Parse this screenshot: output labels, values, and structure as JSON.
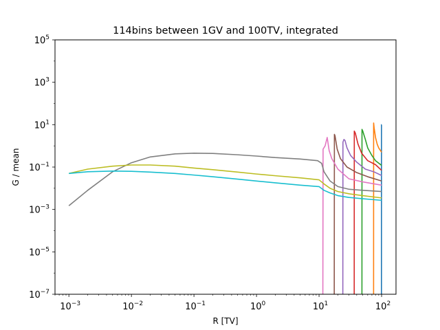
{
  "chart_data": {
    "type": "line",
    "title": "114bins between 1GV and 100TV, integrated",
    "xlabel": "R [TV]",
    "ylabel": "G / mean",
    "xscale": "log",
    "yscale": "log",
    "xlim": [
      0.0006,
      170
    ],
    "ylim": [
      1e-07,
      100000.0
    ],
    "grid": false,
    "x_ticks": [
      {
        "value": 0.001,
        "base": "10",
        "exp": "−3"
      },
      {
        "value": 0.01,
        "base": "10",
        "exp": "−2"
      },
      {
        "value": 0.1,
        "base": "10",
        "exp": "−1"
      },
      {
        "value": 1,
        "base": "10",
        "exp": "0"
      },
      {
        "value": 10,
        "base": "10",
        "exp": "1"
      },
      {
        "value": 100,
        "base": "10",
        "exp": "2"
      }
    ],
    "y_ticks": [
      {
        "value": 1e-07,
        "base": "10",
        "exp": "−7"
      },
      {
        "value": 1e-05,
        "base": "10",
        "exp": "−5"
      },
      {
        "value": 0.001,
        "base": "10",
        "exp": "−3"
      },
      {
        "value": 0.1,
        "base": "10",
        "exp": "−1"
      },
      {
        "value": 10,
        "base": "10",
        "exp": "1"
      },
      {
        "value": 1000,
        "base": "10",
        "exp": "3"
      },
      {
        "value": 100000,
        "base": "10",
        "exp": "5"
      }
    ],
    "series": [
      {
        "color": "#1f77b4",
        "x": [
          99.5,
          99.6,
          100
        ],
        "y": [
          1e-07,
          10,
          10
        ]
      },
      {
        "color": "#ff7f0e",
        "x": [
          74.5,
          74.6,
          76,
          80,
          85,
          90,
          100
        ],
        "y": [
          1e-07,
          12,
          7,
          2.5,
          1.2,
          0.8,
          0.5
        ]
      },
      {
        "color": "#2ca02c",
        "x": [
          48.5,
          48.6,
          50,
          55,
          60,
          70,
          80,
          100
        ],
        "y": [
          1e-07,
          6,
          5,
          2,
          0.8,
          0.35,
          0.2,
          0.12
        ]
      },
      {
        "color": "#d62728",
        "x": [
          36.5,
          36.6,
          38,
          42,
          48,
          60,
          80,
          100
        ],
        "y": [
          1e-07,
          5,
          4,
          1.2,
          0.45,
          0.2,
          0.13,
          0.07
        ]
      },
      {
        "color": "#9467bd",
        "x": [
          24,
          24.1,
          25,
          26,
          28,
          32,
          40,
          55,
          75,
          100
        ],
        "y": [
          1e-07,
          1.5,
          2,
          1.8,
          0.8,
          0.35,
          0.17,
          0.08,
          0.06,
          0.04
        ]
      },
      {
        "color": "#8c564b",
        "x": [
          17.5,
          17.6,
          18,
          19.5,
          22,
          28,
          40,
          60,
          100
        ],
        "y": [
          1e-07,
          3.5,
          3,
          0.7,
          0.25,
          0.1,
          0.055,
          0.035,
          0.022
        ]
      },
      {
        "color": "#e377c2",
        "x": [
          11.5,
          11.6,
          12.5,
          13.5,
          14.5,
          16,
          20,
          30,
          50,
          100
        ],
        "y": [
          1e-07,
          0.7,
          1,
          2.5,
          0.6,
          0.25,
          0.08,
          0.028,
          0.02,
          0.014
        ]
      },
      {
        "color": "#7f7f7f",
        "x": [
          0.001,
          0.002,
          0.005,
          0.01,
          0.02,
          0.05,
          0.1,
          0.2,
          0.5,
          1,
          2,
          5,
          9.5,
          11,
          12,
          15,
          20,
          30,
          50,
          100
        ],
        "y": [
          0.0015,
          0.008,
          0.06,
          0.16,
          0.3,
          0.42,
          0.45,
          0.44,
          0.38,
          0.33,
          0.28,
          0.24,
          0.2,
          0.15,
          0.06,
          0.022,
          0.012,
          0.009,
          0.008,
          0.007
        ]
      },
      {
        "color": "#bcbd22",
        "x": [
          0.001,
          0.002,
          0.005,
          0.01,
          0.02,
          0.05,
          0.1,
          0.2,
          0.5,
          1,
          2,
          5,
          10,
          12,
          15,
          20,
          30,
          50,
          100
        ],
        "y": [
          0.05,
          0.08,
          0.11,
          0.125,
          0.125,
          0.11,
          0.09,
          0.075,
          0.058,
          0.047,
          0.039,
          0.031,
          0.025,
          0.016,
          0.01,
          0.007,
          0.0055,
          0.0045,
          0.0035
        ]
      },
      {
        "color": "#17becf",
        "x": [
          0.001,
          0.002,
          0.005,
          0.01,
          0.02,
          0.05,
          0.1,
          0.2,
          0.5,
          1,
          2,
          5,
          10,
          12,
          15,
          20,
          30,
          50,
          100
        ],
        "y": [
          0.05,
          0.06,
          0.065,
          0.063,
          0.058,
          0.05,
          0.042,
          0.035,
          0.027,
          0.022,
          0.018,
          0.014,
          0.012,
          0.008,
          0.006,
          0.0045,
          0.0037,
          0.0032,
          0.0027
        ]
      }
    ]
  }
}
